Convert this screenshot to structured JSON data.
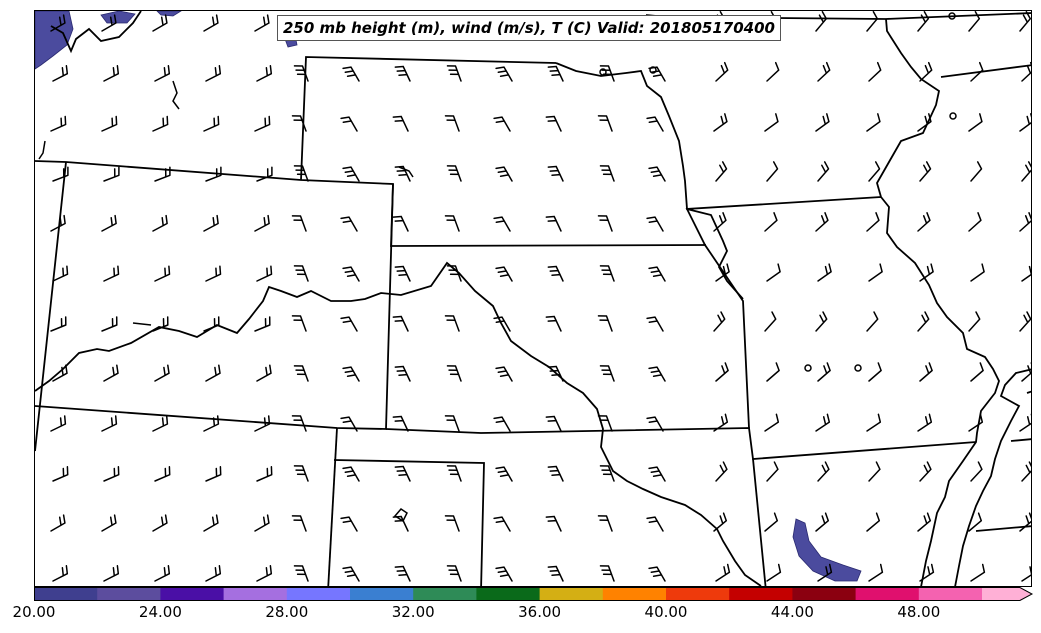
{
  "title": "250 mb height (m), wind (m/s), T (C) Valid: 201805170400",
  "colorbar": {
    "tick_labels": [
      "20.00",
      "24.00",
      "28.00",
      "32.00",
      "36.00",
      "40.00",
      "44.00",
      "48.00"
    ],
    "colors": [
      "#3f3f8f",
      "#5c4d9e",
      "#4a0fa6",
      "#a56fe0",
      "#7676ff",
      "#3a7fd1",
      "#2e8b57",
      "#0a6a1a",
      "#d4af14",
      "#ff8200",
      "#ee3a0c",
      "#c40000",
      "#8b0010",
      "#e0106e",
      "#f462b0",
      "#ffb0d6"
    ]
  },
  "colors": {
    "temperature_shading": "#4b4b9e",
    "boundaries": "#000000"
  }
}
